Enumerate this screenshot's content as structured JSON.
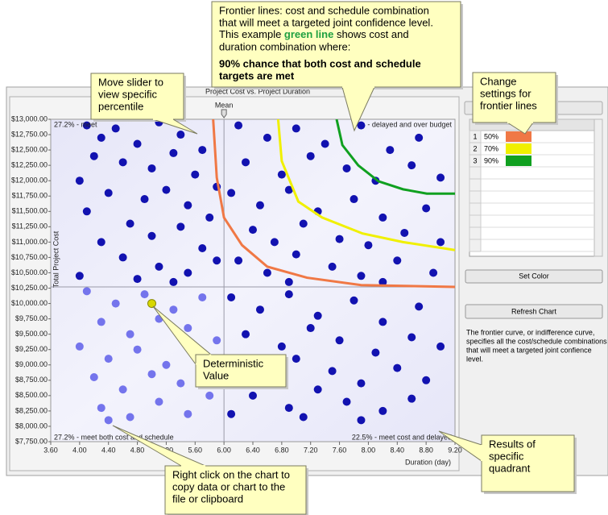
{
  "chart": {
    "type": "scatter",
    "title": "Project Cost vs. Project Duration",
    "x_label": "Duration (day)",
    "y_label": "Total Project Cost",
    "xlim": [
      3.6,
      9.2
    ],
    "ylim": [
      7750,
      13000
    ],
    "xticks": [
      {
        "value": 3.6,
        "label": "3.60"
      },
      {
        "value": 4.0,
        "label": "4.00"
      },
      {
        "value": 4.4,
        "label": "4.40"
      },
      {
        "value": 4.8,
        "label": "4.80"
      },
      {
        "value": 5.2,
        "label": "5.20"
      },
      {
        "value": 5.6,
        "label": "5.60"
      },
      {
        "value": 6.0,
        "label": "6.00"
      },
      {
        "value": 6.4,
        "label": "6.40"
      },
      {
        "value": 6.8,
        "label": "6.80"
      },
      {
        "value": 7.2,
        "label": "7.20"
      },
      {
        "value": 7.6,
        "label": "7.60"
      },
      {
        "value": 8.0,
        "label": "8.00"
      },
      {
        "value": 8.4,
        "label": "8.40"
      },
      {
        "value": 8.8,
        "label": "8.80"
      },
      {
        "value": 9.2,
        "label": "9.20"
      }
    ],
    "yticks": [
      {
        "value": 7750,
        "label": "$7,750.00"
      },
      {
        "value": 8000,
        "label": "$8,000.00"
      },
      {
        "value": 8250,
        "label": "$8,250.00"
      },
      {
        "value": 8500,
        "label": "$8,500.00"
      },
      {
        "value": 8750,
        "label": "$8,750.00"
      },
      {
        "value": 9000,
        "label": "$9,000.00"
      },
      {
        "value": 9250,
        "label": "$9,250.00"
      },
      {
        "value": 9500,
        "label": "$9,500.00"
      },
      {
        "value": 9750,
        "label": "$9,750.00"
      },
      {
        "value": 10000,
        "label": "$10,000.00"
      },
      {
        "value": 10250,
        "label": "$10,250.00"
      },
      {
        "value": 10500,
        "label": "$10,500.00"
      },
      {
        "value": 10750,
        "label": "$10,750.00"
      },
      {
        "value": 11000,
        "label": "$11,000.00"
      },
      {
        "value": 11250,
        "label": "$11,250.00"
      },
      {
        "value": 11500,
        "label": "$11,500.00"
      },
      {
        "value": 11750,
        "label": "$11,750.00"
      },
      {
        "value": 12000,
        "label": "$12,000.00"
      },
      {
        "value": 12250,
        "label": "$12,250.00"
      },
      {
        "value": 12500,
        "label": "$12,500.00"
      },
      {
        "value": 12750,
        "label": "$12,750.00"
      },
      {
        "value": 13000,
        "label": "$13,000.00"
      }
    ],
    "mean": {
      "label": "Mean",
      "x": 6.0,
      "y": 10270
    },
    "deterministic": {
      "x": 5.0,
      "y": 10000,
      "color": "#d8d800"
    },
    "quadrant_labels": [
      "27.2% - meet",
      "- delayed and over budget",
      "27.2% - meet both cost and schedule",
      "22.5% - meet cost and delayed"
    ],
    "series": [
      {
        "color": "#1212b0",
        "x": [
          4.1,
          4.3,
          4.5,
          4.8,
          5.1,
          5.4,
          5.7,
          4.2,
          4.6,
          5.0,
          5.3,
          5.6,
          5.9,
          4.0,
          4.4,
          4.9,
          5.2,
          5.5,
          5.8,
          4.1,
          4.7,
          5.0,
          5.4,
          5.7,
          4.3,
          4.6,
          5.1,
          5.5,
          5.9,
          4.0,
          4.8,
          5.3,
          6.2,
          6.6,
          7.0,
          7.4,
          7.9,
          8.3,
          8.7,
          6.3,
          6.8,
          7.2,
          7.7,
          8.1,
          8.6,
          9.0,
          6.1,
          6.5,
          6.9,
          7.3,
          7.8,
          8.2,
          8.8,
          6.4,
          6.7,
          7.1,
          7.6,
          8.0,
          8.5,
          9.0,
          6.2,
          6.6,
          7.0,
          7.5,
          7.9,
          8.4,
          8.9,
          6.9,
          8.2,
          6.1,
          6.5,
          6.9,
          7.3,
          7.8,
          8.2,
          8.7,
          6.3,
          6.8,
          7.2,
          7.6,
          8.1,
          8.6,
          9.0,
          6.2,
          6.6,
          7.0,
          7.5,
          7.9,
          8.4,
          8.8,
          6.4,
          6.9,
          7.3,
          7.7,
          8.2,
          8.6,
          6.1,
          7.1,
          7.9
        ],
        "y": [
          12900,
          12700,
          12850,
          12600,
          12950,
          12750,
          12500,
          12400,
          12300,
          12200,
          12450,
          12100,
          11900,
          12000,
          11800,
          11700,
          11850,
          11600,
          11400,
          11500,
          11300,
          11100,
          11250,
          10900,
          11000,
          10750,
          10600,
          10500,
          10700,
          10450,
          10400,
          10350,
          12900,
          12700,
          12850,
          12600,
          12900,
          12500,
          12700,
          12300,
          12100,
          12400,
          12200,
          12000,
          12250,
          12050,
          11800,
          11600,
          11850,
          11500,
          11700,
          11400,
          11550,
          11200,
          11000,
          11300,
          11050,
          10950,
          11150,
          11000,
          10700,
          10500,
          10800,
          10600,
          10450,
          10700,
          10500,
          10350,
          10350,
          10100,
          9900,
          10150,
          9800,
          10050,
          9700,
          9950,
          9500,
          9300,
          9600,
          9400,
          9200,
          9450,
          9300,
          9000,
          8800,
          9100,
          8900,
          8700,
          8950,
          8750,
          8500,
          8300,
          8600,
          8400,
          8250,
          8450,
          8200,
          8150,
          8100
        ]
      },
      {
        "color": "#7474ec",
        "x": [
          4.1,
          4.5,
          4.9,
          5.3,
          5.7,
          4.3,
          4.7,
          5.1,
          5.5,
          5.9,
          4.0,
          4.4,
          4.8,
          5.2,
          5.6,
          4.2,
          4.6,
          5.0,
          5.4,
          5.8,
          4.3,
          4.7,
          5.1,
          5.5,
          4.4
        ],
        "y": [
          10200,
          10000,
          10150,
          9900,
          10100,
          9700,
          9500,
          9750,
          9600,
          9400,
          9300,
          9100,
          9250,
          9000,
          9150,
          8800,
          8600,
          8850,
          8700,
          8500,
          8300,
          8150,
          8400,
          8200,
          8100
        ]
      }
    ],
    "frontier_lines": [
      {
        "row": "1",
        "percentile": "50%",
        "color": "#f07845",
        "x": [
          5.85,
          5.9,
          6.0,
          6.25,
          6.6,
          7.15,
          7.9,
          9.2
        ],
        "y": [
          13000,
          12050,
          11400,
          10950,
          10600,
          10420,
          10300,
          10270
        ]
      },
      {
        "row": "2",
        "percentile": "70%",
        "color": "#f0f000",
        "x": [
          6.75,
          6.8,
          7.03,
          7.36,
          7.92,
          8.48,
          9.2
        ],
        "y": [
          13000,
          12320,
          11660,
          11400,
          11140,
          11000,
          10870
        ]
      },
      {
        "row": "3",
        "percentile": "90%",
        "color": "#10a020",
        "x": [
          7.56,
          7.64,
          7.86,
          8.14,
          8.48,
          8.81,
          9.2
        ],
        "y": [
          13000,
          12580,
          12250,
          11990,
          11860,
          11790,
          11790
        ]
      }
    ]
  },
  "settings_panel": {
    "set_color": "Set Color",
    "refresh": "Refresh Chart",
    "description": [
      "The frontier curve, or indifference curve,",
      "specifies all the cost/schedule combinations",
      "that will meet a targeted joint confience",
      "level."
    ]
  },
  "callouts": [
    {
      "emphasis_color": "#1fa040",
      "lines": [
        "Frontier lines: cost and schedule combination",
        "that will meet a targeted joint confidence level.",
        [
          {
            "text": "This example "
          },
          {
            "text": "green line",
            "emphasis": true
          },
          {
            "text": " shows cost and"
          }
        ],
        "duration combination where:"
      ],
      "emphasis_lines": [
        "90% chance that both cost and schedule",
        "targets are met"
      ]
    },
    {
      "lines": [
        "Move slider to",
        "view specific",
        "percentile"
      ]
    },
    {
      "lines": [
        "Change",
        "settings for",
        "frontier lines"
      ]
    },
    {
      "lines": [
        "Deterministic",
        "Value"
      ]
    },
    {
      "lines": [
        "Results of",
        "specific",
        "quadrant"
      ]
    },
    {
      "lines": [
        "Right click on the chart to",
        "copy data or chart to the",
        "file or clipboard"
      ]
    }
  ]
}
